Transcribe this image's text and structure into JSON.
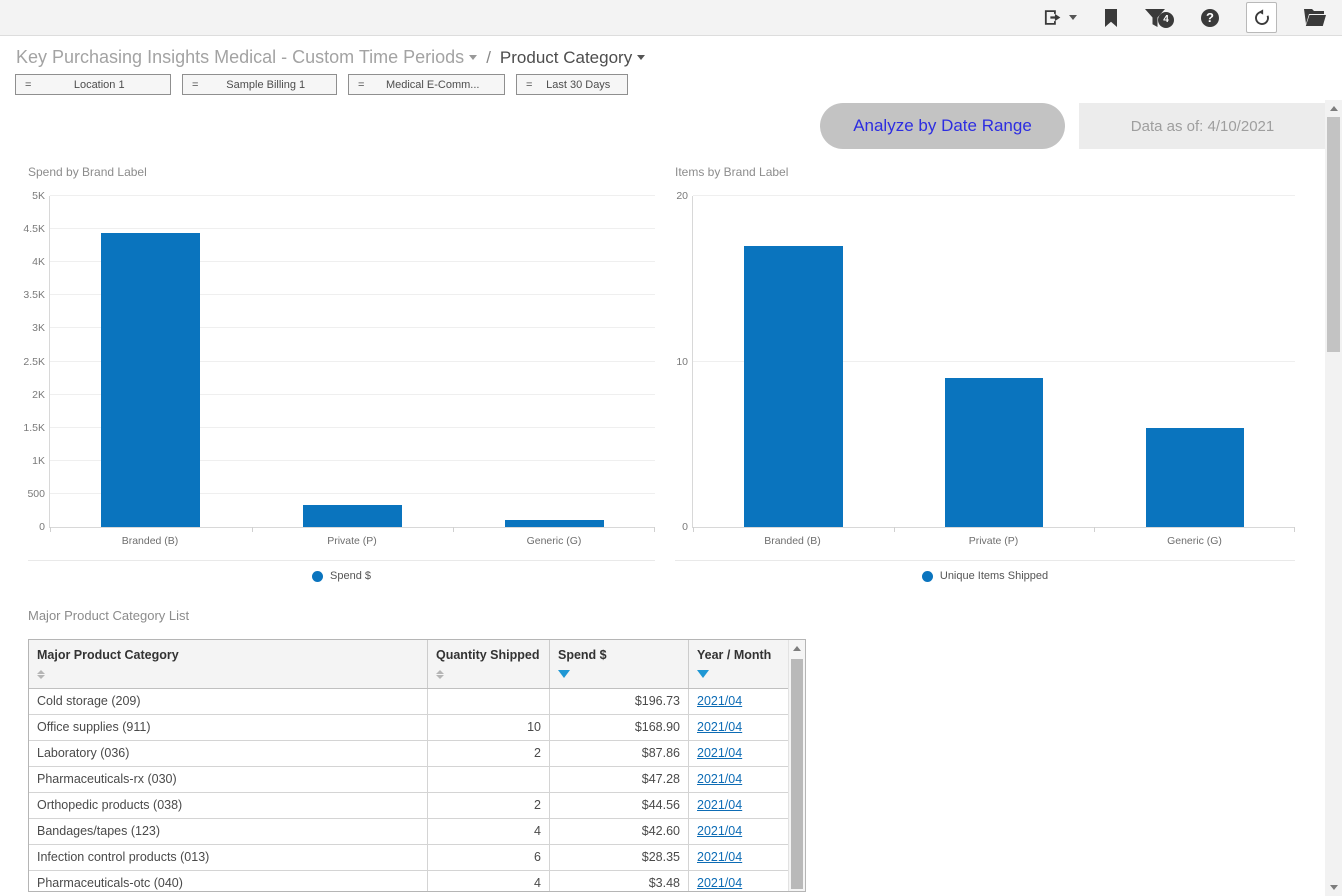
{
  "topbar": {
    "filter_badge": "4",
    "help_glyph": "?"
  },
  "breadcrumb": {
    "primary": "Key Purchasing Insights Medical - Custom Time Periods",
    "separator": "/",
    "secondary": "Product Category"
  },
  "filters": [
    {
      "op": "=",
      "label": "Location 1"
    },
    {
      "op": "=",
      "label": "Sample Billing 1"
    },
    {
      "op": "=",
      "label": "Medical E-Comm..."
    },
    {
      "op": "=",
      "label": "Last 30 Days"
    }
  ],
  "actions": {
    "analyze_button": "Analyze by Date Range",
    "data_as_of": "Data as of: 4/10/2021"
  },
  "chart_data": [
    {
      "type": "bar",
      "title": "Spend by Brand Label",
      "categories": [
        "Branded (B)",
        "Private (P)",
        "Generic (G)"
      ],
      "values": [
        4440,
        330,
        105
      ],
      "ylim": [
        0,
        5000
      ],
      "yticks": [
        {
          "v": 0,
          "label": "0"
        },
        {
          "v": 500,
          "label": "500"
        },
        {
          "v": 1000,
          "label": "1K"
        },
        {
          "v": 1500,
          "label": "1.5K"
        },
        {
          "v": 2000,
          "label": "2K"
        },
        {
          "v": 2500,
          "label": "2.5K"
        },
        {
          "v": 3000,
          "label": "3K"
        },
        {
          "v": 3500,
          "label": "3.5K"
        },
        {
          "v": 4000,
          "label": "4K"
        },
        {
          "v": 4500,
          "label": "4.5K"
        },
        {
          "v": 5000,
          "label": "5K"
        }
      ],
      "legend": "Spend $",
      "legend_position": "bottom",
      "grid": true,
      "bar_color": "#0a74be",
      "xlabel": "",
      "ylabel": ""
    },
    {
      "type": "bar",
      "title": "Items by Brand Label",
      "categories": [
        "Branded (B)",
        "Private (P)",
        "Generic (G)"
      ],
      "values": [
        17,
        9,
        6
      ],
      "ylim": [
        0,
        20
      ],
      "yticks": [
        {
          "v": 0,
          "label": "0"
        },
        {
          "v": 10,
          "label": "10"
        },
        {
          "v": 20,
          "label": "20"
        }
      ],
      "legend": "Unique Items Shipped",
      "legend_position": "bottom",
      "grid": true,
      "bar_color": "#0a74be",
      "xlabel": "",
      "ylabel": ""
    }
  ],
  "table": {
    "title": "Major Product Category List",
    "columns": [
      {
        "label": "Major Product Category",
        "sort": "none"
      },
      {
        "label": "Quantity Shipped",
        "sort": "none"
      },
      {
        "label": "Spend $",
        "sort": "desc"
      },
      {
        "label": "Year / Month",
        "sort": "desc"
      }
    ],
    "rows": [
      [
        "Cold storage (209)",
        "",
        "$196.73",
        "2021/04"
      ],
      [
        "Office supplies (911)",
        "10",
        "$168.90",
        "2021/04"
      ],
      [
        "Laboratory (036)",
        "2",
        "$87.86",
        "2021/04"
      ],
      [
        "Pharmaceuticals-rx (030)",
        "",
        "$47.28",
        "2021/04"
      ],
      [
        "Orthopedic products (038)",
        "2",
        "$44.56",
        "2021/04"
      ],
      [
        "Bandages/tapes (123)",
        "4",
        "$42.60",
        "2021/04"
      ],
      [
        "Infection control products (013)",
        "6",
        "$28.35",
        "2021/04"
      ],
      [
        "Pharmaceuticals-otc (040)",
        "4",
        "$3.48",
        "2021/04"
      ]
    ]
  },
  "colors": {
    "bar_blue": "#0a74be",
    "link_blue": "#0d6cb5",
    "sort_active_blue": "#1f97d4",
    "button_text_blue": "#2d2de1"
  }
}
